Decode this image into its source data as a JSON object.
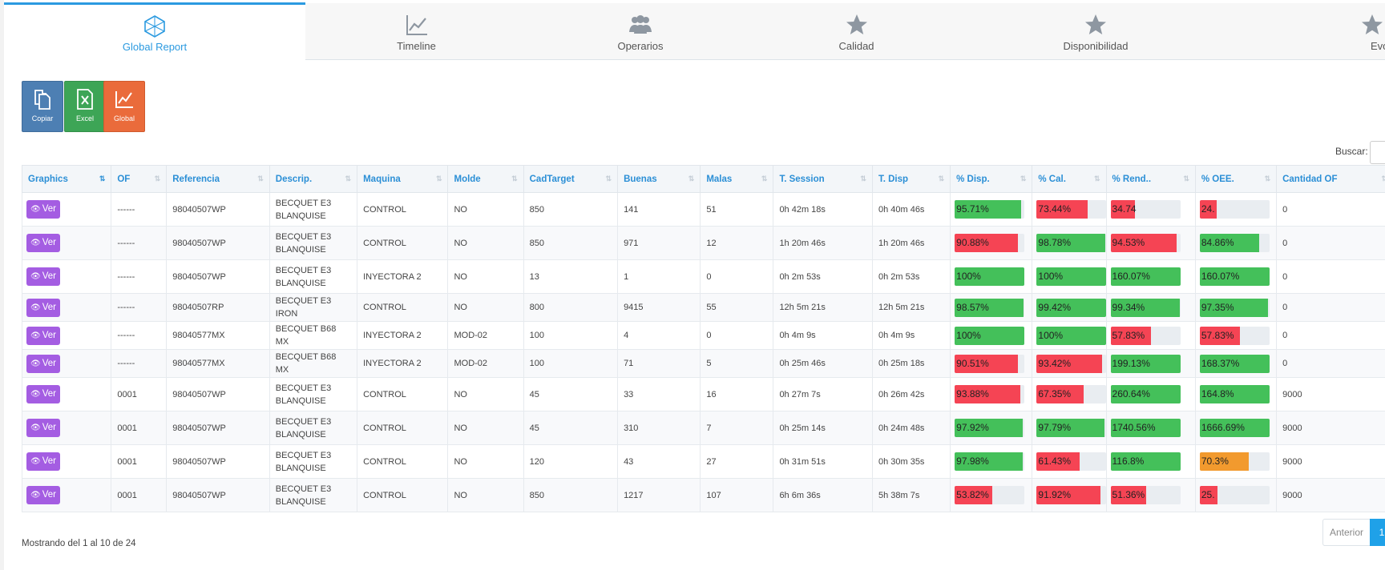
{
  "tabs": [
    {
      "label": "Global Report",
      "icon": "network-icon",
      "active": true
    },
    {
      "label": "Timeline",
      "icon": "line-chart-icon",
      "active": false
    },
    {
      "label": "Operarios",
      "icon": "users-icon",
      "active": false
    },
    {
      "label": "Calidad",
      "icon": "star-icon",
      "active": false
    },
    {
      "label": "Disponibilidad",
      "icon": "star-icon",
      "active": false
    },
    {
      "label": "Evol",
      "icon": "star-icon",
      "active": false
    }
  ],
  "actions": {
    "copy_label": "Copiar",
    "excel_label": "Excel",
    "global_label": "Global"
  },
  "search": {
    "label": "Buscar:",
    "value": ""
  },
  "table": {
    "columns": [
      "Graphics",
      "OF",
      "Referencia",
      "Descrip.",
      "Maquina",
      "Molde",
      "CadTarget",
      "Buenas",
      "Malas",
      "T. Session",
      "T. Disp",
      "% Disp.",
      "% Cal.",
      "% Rend..",
      "% OEE.",
      "Cantidad OF"
    ],
    "sorted_column": "Graphics",
    "ver_label": "Ver",
    "rows": [
      {
        "of": "------",
        "referencia": "98040507WP",
        "descrip": "BECQUET E3 BLANQUISE",
        "maquina": "CONTROL",
        "molde": "NO",
        "cadtarget": "850",
        "buenas": "141",
        "malas": "51",
        "t_session": "0h 42m 18s",
        "t_disp": "0h 40m 46s",
        "disp": {
          "text": "95.71%",
          "pct": 95.71,
          "color": "#44c05a"
        },
        "cal": {
          "text": "73.44%",
          "pct": 73.44,
          "color": "#f54454"
        },
        "rend": {
          "text": "34.74",
          "pct": 34.74,
          "color": "#f54454"
        },
        "oee": {
          "text": "24.",
          "pct": 24.0,
          "color": "#f54454"
        },
        "cantidad": "0"
      },
      {
        "of": "------",
        "referencia": "98040507WP",
        "descrip": "BECQUET E3 BLANQUISE",
        "maquina": "CONTROL",
        "molde": "NO",
        "cadtarget": "850",
        "buenas": "971",
        "malas": "12",
        "t_session": "1h 20m 46s",
        "t_disp": "1h 20m 46s",
        "disp": {
          "text": "90.88%",
          "pct": 90.88,
          "color": "#f54454"
        },
        "cal": {
          "text": "98.78%",
          "pct": 98.78,
          "color": "#44c05a"
        },
        "rend": {
          "text": "94.53%",
          "pct": 94.53,
          "color": "#f54454"
        },
        "oee": {
          "text": "84.86%",
          "pct": 84.86,
          "color": "#44c05a"
        },
        "cantidad": "0"
      },
      {
        "of": "------",
        "referencia": "98040507WP",
        "descrip": "BECQUET E3 BLANQUISE",
        "maquina": "INYECTORA 2",
        "molde": "NO",
        "cadtarget": "13",
        "buenas": "1",
        "malas": "0",
        "t_session": "0h 2m 53s",
        "t_disp": "0h 2m 53s",
        "disp": {
          "text": "100%",
          "pct": 100,
          "color": "#44c05a"
        },
        "cal": {
          "text": "100%",
          "pct": 100,
          "color": "#44c05a"
        },
        "rend": {
          "text": "160.07%",
          "pct": 100,
          "color": "#44c05a"
        },
        "oee": {
          "text": "160.07%",
          "pct": 100,
          "color": "#44c05a"
        },
        "cantidad": "0"
      },
      {
        "of": "------",
        "referencia": "98040507RP",
        "descrip": "BECQUET E3 IRON",
        "maquina": "CONTROL",
        "molde": "NO",
        "cadtarget": "800",
        "buenas": "9415",
        "malas": "55",
        "t_session": "12h 5m 21s",
        "t_disp": "12h 5m 21s",
        "disp": {
          "text": "98.57%",
          "pct": 98.57,
          "color": "#44c05a"
        },
        "cal": {
          "text": "99.42%",
          "pct": 99.42,
          "color": "#44c05a"
        },
        "rend": {
          "text": "99.34%",
          "pct": 99.34,
          "color": "#44c05a"
        },
        "oee": {
          "text": "97.35%",
          "pct": 97.35,
          "color": "#44c05a"
        },
        "cantidad": "0"
      },
      {
        "of": "------",
        "referencia": "98040577MX",
        "descrip": "BECQUET B68 MX",
        "maquina": "INYECTORA 2",
        "molde": "MOD-02",
        "cadtarget": "100",
        "buenas": "4",
        "malas": "0",
        "t_session": "0h 4m 9s",
        "t_disp": "0h 4m 9s",
        "disp": {
          "text": "100%",
          "pct": 100,
          "color": "#44c05a"
        },
        "cal": {
          "text": "100%",
          "pct": 100,
          "color": "#44c05a"
        },
        "rend": {
          "text": "57.83%",
          "pct": 57.83,
          "color": "#f54454"
        },
        "oee": {
          "text": "57.83%",
          "pct": 57.83,
          "color": "#f54454"
        },
        "cantidad": "0"
      },
      {
        "of": "------",
        "referencia": "98040577MX",
        "descrip": "BECQUET B68 MX",
        "maquina": "INYECTORA 2",
        "molde": "MOD-02",
        "cadtarget": "100",
        "buenas": "71",
        "malas": "5",
        "t_session": "0h 25m 46s",
        "t_disp": "0h 25m 18s",
        "disp": {
          "text": "90.51%",
          "pct": 90.51,
          "color": "#f54454"
        },
        "cal": {
          "text": "93.42%",
          "pct": 93.42,
          "color": "#f54454"
        },
        "rend": {
          "text": "199.13%",
          "pct": 100,
          "color": "#44c05a"
        },
        "oee": {
          "text": "168.37%",
          "pct": 100,
          "color": "#44c05a"
        },
        "cantidad": "0"
      },
      {
        "of": "0001",
        "referencia": "98040507WP",
        "descrip": "BECQUET E3 BLANQUISE",
        "maquina": "CONTROL",
        "molde": "NO",
        "cadtarget": "45",
        "buenas": "33",
        "malas": "16",
        "t_session": "0h 27m 7s",
        "t_disp": "0h 26m 42s",
        "disp": {
          "text": "93.88%",
          "pct": 93.88,
          "color": "#f54454"
        },
        "cal": {
          "text": "67.35%",
          "pct": 67.35,
          "color": "#f54454"
        },
        "rend": {
          "text": "260.64%",
          "pct": 100,
          "color": "#44c05a"
        },
        "oee": {
          "text": "164.8%",
          "pct": 100,
          "color": "#44c05a"
        },
        "cantidad": "9000"
      },
      {
        "of": "0001",
        "referencia": "98040507WP",
        "descrip": "BECQUET E3 BLANQUISE",
        "maquina": "CONTROL",
        "molde": "NO",
        "cadtarget": "45",
        "buenas": "310",
        "malas": "7",
        "t_session": "0h 25m 14s",
        "t_disp": "0h 24m 48s",
        "disp": {
          "text": "97.92%",
          "pct": 97.92,
          "color": "#44c05a"
        },
        "cal": {
          "text": "97.79%",
          "pct": 97.79,
          "color": "#44c05a"
        },
        "rend": {
          "text": "1740.56%",
          "pct": 100,
          "color": "#44c05a"
        },
        "oee": {
          "text": "1666.69%",
          "pct": 100,
          "color": "#44c05a"
        },
        "cantidad": "9000"
      },
      {
        "of": "0001",
        "referencia": "98040507WP",
        "descrip": "BECQUET E3 BLANQUISE",
        "maquina": "CONTROL",
        "molde": "NO",
        "cadtarget": "120",
        "buenas": "43",
        "malas": "27",
        "t_session": "0h 31m 51s",
        "t_disp": "0h 30m 35s",
        "disp": {
          "text": "97.98%",
          "pct": 97.98,
          "color": "#44c05a"
        },
        "cal": {
          "text": "61.43%",
          "pct": 61.43,
          "color": "#f54454"
        },
        "rend": {
          "text": "116.8%",
          "pct": 100,
          "color": "#44c05a"
        },
        "oee": {
          "text": "70.3%",
          "pct": 70.3,
          "color": "#f29a2e"
        },
        "cantidad": "9000"
      },
      {
        "of": "0001",
        "referencia": "98040507WP",
        "descrip": "BECQUET E3 BLANQUISE",
        "maquina": "CONTROL",
        "molde": "NO",
        "cadtarget": "850",
        "buenas": "1217",
        "malas": "107",
        "t_session": "6h 6m 36s",
        "t_disp": "5h 38m 7s",
        "disp": {
          "text": "53.82%",
          "pct": 53.82,
          "color": "#f54454"
        },
        "cal": {
          "text": "91.92%",
          "pct": 91.92,
          "color": "#f54454"
        },
        "rend": {
          "text": "51.36%",
          "pct": 51.36,
          "color": "#f54454"
        },
        "oee": {
          "text": "25.",
          "pct": 25.0,
          "color": "#f54454"
        },
        "cantidad": "9000"
      }
    ]
  },
  "footer": {
    "info": "Mostrando del 1 al 10 de 24",
    "prev_label": "Anterior",
    "current_page": "1"
  },
  "colors": {
    "accent": "#2b9ae0",
    "good": "#44c05a",
    "bad": "#f54454",
    "warn": "#f29a2e",
    "ver": "#a45de2"
  }
}
